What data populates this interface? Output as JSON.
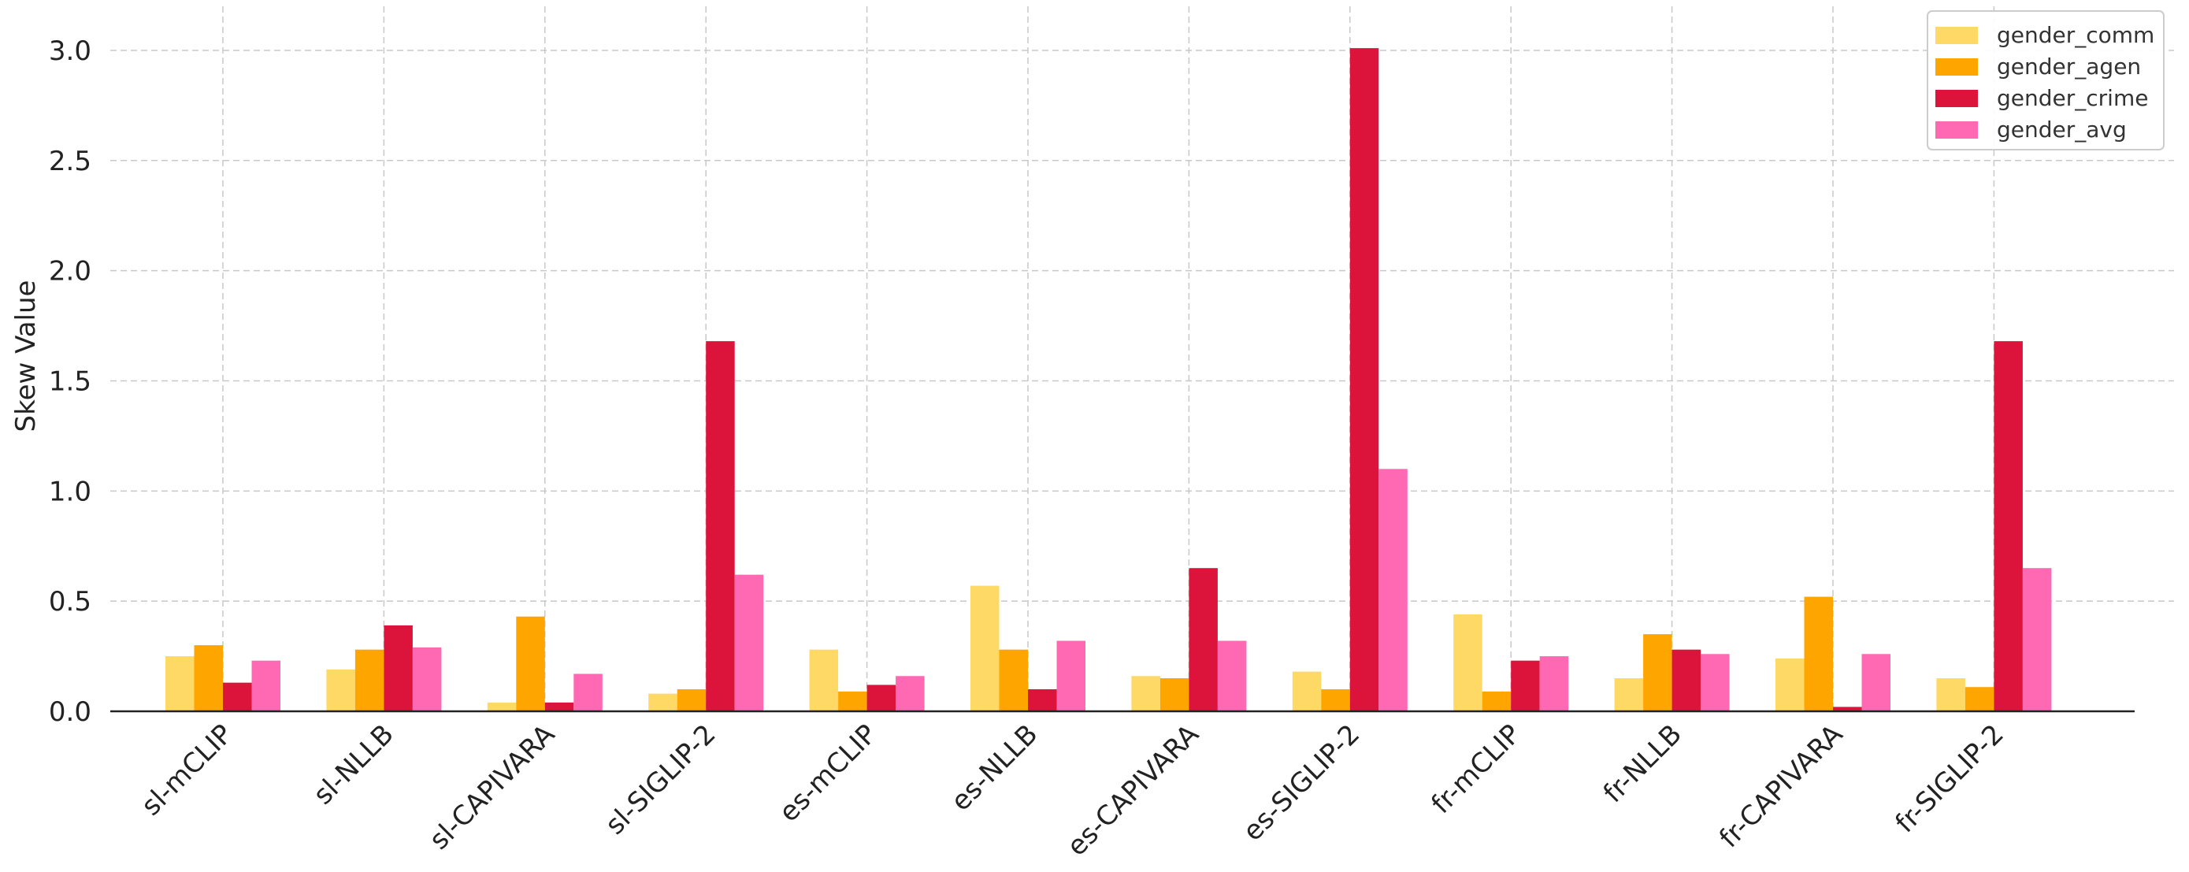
{
  "chart_data": {
    "type": "bar",
    "title": "",
    "xlabel": "",
    "ylabel": "Skew Value",
    "ylim": [
      0,
      3.2
    ],
    "yticks": [
      "0.0",
      "0.5",
      "1.0",
      "1.5",
      "2.0",
      "2.5",
      "3.0"
    ],
    "grid": true,
    "legend_position": "top-right",
    "categories": [
      "sl-mCLIP",
      "sl-NLLB",
      "sl-CAPIVARA",
      "sl-SIGLIP-2",
      "es-mCLIP",
      "es-NLLB",
      "es-CAPIVARA",
      "es-SIGLIP-2",
      "fr-mCLIP",
      "fr-NLLB",
      "fr-CAPIVARA",
      "fr-SIGLIP-2"
    ],
    "series": [
      {
        "name": "gender_comm",
        "color": "#FFD966",
        "values": [
          0.25,
          0.19,
          0.04,
          0.08,
          0.28,
          0.57,
          0.16,
          0.18,
          0.44,
          0.15,
          0.24,
          0.15
        ]
      },
      {
        "name": "gender_agen",
        "color": "#FFA500",
        "values": [
          0.3,
          0.28,
          0.43,
          0.1,
          0.09,
          0.28,
          0.15,
          0.1,
          0.09,
          0.35,
          0.52,
          0.11
        ]
      },
      {
        "name": "gender_crime",
        "color": "#DC143C",
        "values": [
          0.13,
          0.39,
          0.04,
          1.68,
          0.12,
          0.1,
          0.65,
          3.01,
          0.23,
          0.28,
          0.02,
          1.68
        ]
      },
      {
        "name": "gender_avg",
        "color": "#FF69B4",
        "values": [
          0.23,
          0.29,
          0.17,
          0.62,
          0.16,
          0.32,
          0.32,
          1.1,
          0.25,
          0.26,
          0.26,
          0.65
        ]
      }
    ]
  }
}
